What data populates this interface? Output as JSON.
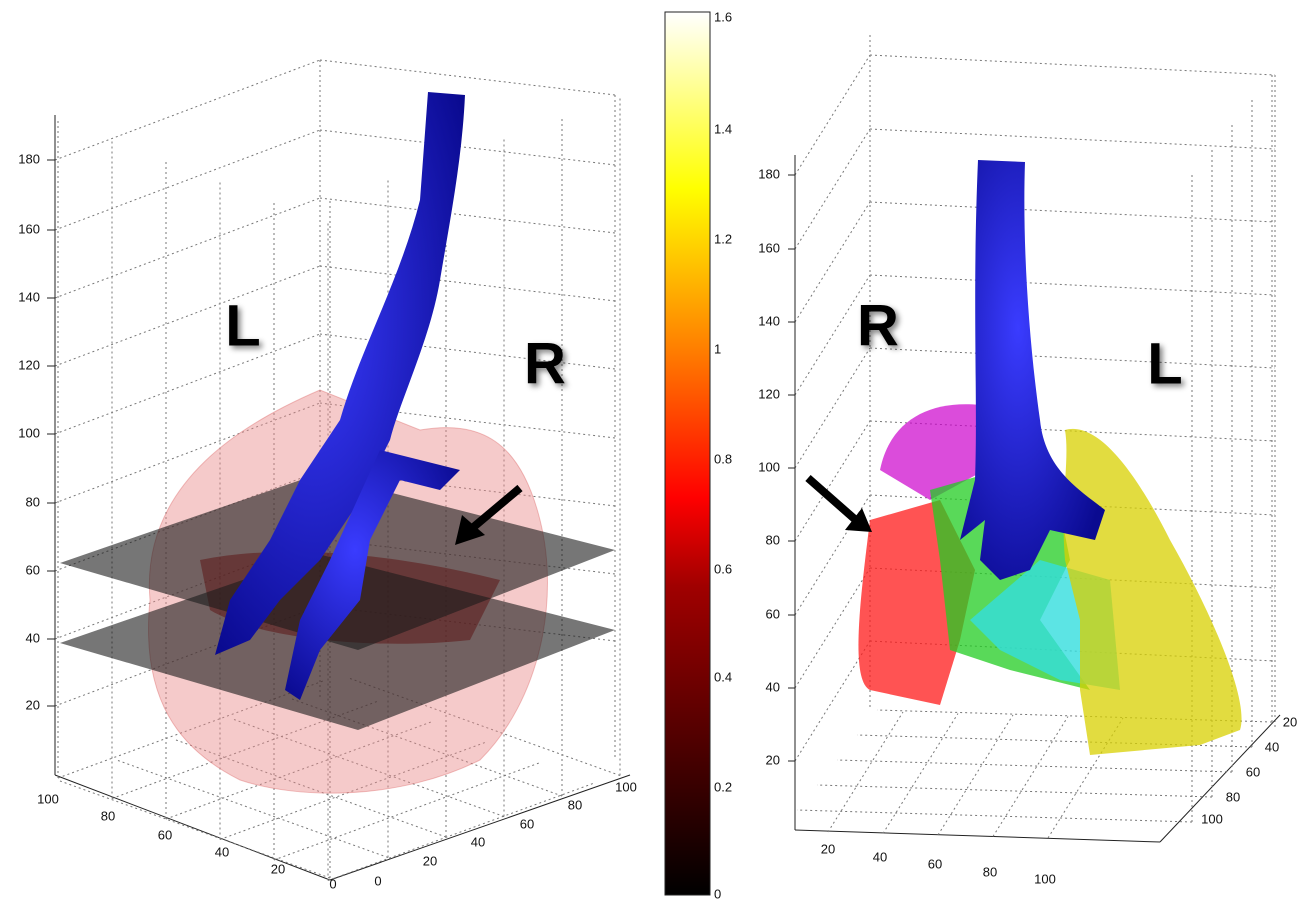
{
  "left_plot": {
    "z_ticks": [
      "180",
      "160",
      "140",
      "120",
      "100",
      "80",
      "60",
      "40",
      "20"
    ],
    "x_ticks": [
      "100",
      "80",
      "60",
      "40",
      "20",
      "0"
    ],
    "y_ticks": [
      "0",
      "20",
      "40",
      "60",
      "80",
      "100"
    ],
    "side_labels": [
      "L",
      "R"
    ]
  },
  "colorbar": {
    "ticks": [
      "1.6",
      "1.4",
      "1.2",
      "1",
      "0.8",
      "0.6",
      "0.4",
      "0.2",
      "0"
    ]
  },
  "right_plot": {
    "z_ticks": [
      "180",
      "160",
      "140",
      "120",
      "100",
      "80",
      "60",
      "40",
      "20"
    ],
    "x_ticks": [
      "20",
      "40",
      "60",
      "80",
      "100"
    ],
    "y_ticks": [
      "20",
      "40",
      "60",
      "80",
      "100"
    ],
    "side_labels": [
      "R",
      "L"
    ]
  }
}
